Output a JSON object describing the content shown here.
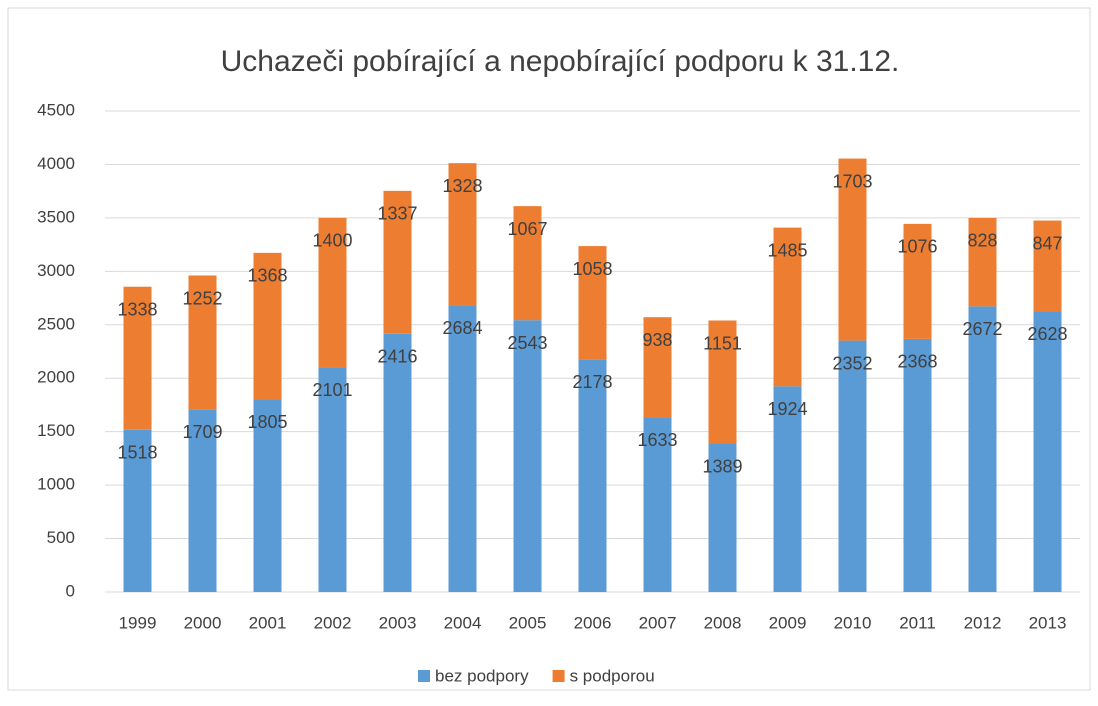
{
  "chart_data": {
    "type": "stacked_bar",
    "title": "Uchazeči pobírající a nepobírající podporu k 31.12.",
    "categories": [
      "1999",
      "2000",
      "2001",
      "2002",
      "2003",
      "2004",
      "2005",
      "2006",
      "2007",
      "2008",
      "2009",
      "2010",
      "2011",
      "2012",
      "2013"
    ],
    "series": [
      {
        "name": "bez podpory",
        "color": "#5b9bd5",
        "values": [
          1518,
          1709,
          1805,
          2101,
          2416,
          2684,
          2543,
          2178,
          1633,
          1389,
          1924,
          2352,
          2368,
          2672,
          2628
        ]
      },
      {
        "name": "s podporou",
        "color": "#ed7d31",
        "values": [
          1338,
          1252,
          1368,
          1400,
          1337,
          1328,
          1067,
          1058,
          938,
          1151,
          1485,
          1703,
          1076,
          828,
          847
        ]
      }
    ],
    "ylim": [
      0,
      4500
    ],
    "yticks": [
      0,
      500,
      1000,
      1500,
      2000,
      2500,
      3000,
      3500,
      4000,
      4500
    ],
    "grid": true,
    "legend": "bottom"
  }
}
